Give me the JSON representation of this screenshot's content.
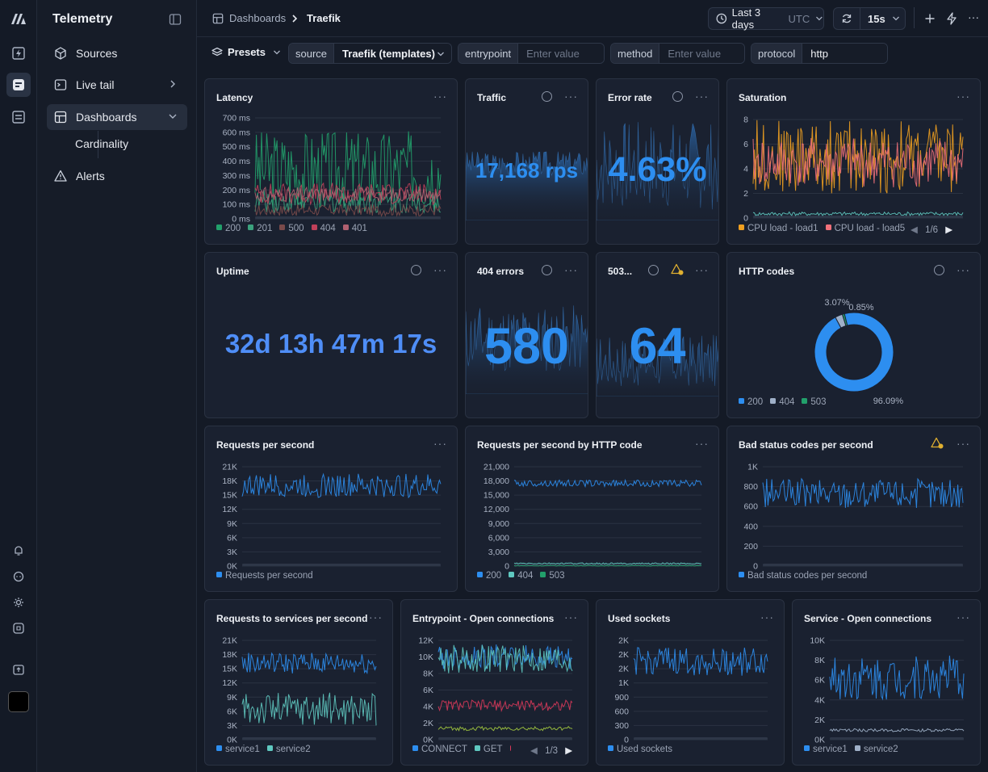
{
  "app": {
    "title": "Telemetry"
  },
  "sidebar": {
    "items": [
      {
        "label": "Sources",
        "icon": "cube-icon"
      },
      {
        "label": "Live tail",
        "icon": "terminal-icon"
      },
      {
        "label": "Dashboards",
        "icon": "dashboard-icon"
      },
      {
        "label": "Alerts",
        "icon": "warning-icon"
      }
    ],
    "sub_items": [
      {
        "label": "Cardinality"
      }
    ]
  },
  "header": {
    "breadcrumb": [
      "Dashboards",
      "Traefik"
    ],
    "time_range": "Last 3 days",
    "timezone": "UTC",
    "refresh": "15s"
  },
  "filters": {
    "presets_label": "Presets",
    "source": {
      "label": "source",
      "value": "Traefik (templates)"
    },
    "entrypoint": {
      "label": "entrypoint",
      "placeholder": "Enter value"
    },
    "method": {
      "label": "method",
      "placeholder": "Enter value"
    },
    "protocol": {
      "label": "protocol",
      "value": "http"
    }
  },
  "panels": {
    "latency": {
      "title": "Latency"
    },
    "traffic": {
      "title": "Traffic",
      "value": "17,168 rps"
    },
    "error_rate": {
      "title": "Error rate",
      "value": "4.63%"
    },
    "saturation": {
      "title": "Saturation",
      "pager": "1/6"
    },
    "uptime": {
      "title": "Uptime",
      "value": "32d 13h 47m 17s"
    },
    "errors_404": {
      "title": "404 errors",
      "value": "580"
    },
    "errors_503": {
      "title": "503...",
      "value": "64"
    },
    "http_codes": {
      "title": "HTTP codes"
    },
    "rps": {
      "title": "Requests per second"
    },
    "rps_by_code": {
      "title": "Requests per second by HTTP code"
    },
    "bad_status": {
      "title": "Bad status codes per second"
    },
    "rps_services": {
      "title": "Requests to services per second"
    },
    "entrypoint_conn": {
      "title": "Entrypoint - Open connections",
      "pager": "1/3"
    },
    "used_sockets": {
      "title": "Used sockets"
    },
    "service_conn": {
      "title": "Service - Open connections"
    }
  },
  "colors": {
    "blue": "#2d8ef0",
    "green": "#22a06b",
    "red": "#d9385a",
    "orange": "#f0a020",
    "salmon": "#f0707a",
    "teal": "#5fc8c0"
  },
  "chart_data": [
    {
      "id": "latency",
      "type": "line",
      "yticks": [
        "700 ms",
        "600 ms",
        "500 ms",
        "400 ms",
        "300 ms",
        "200 ms",
        "100 ms",
        "0 ms"
      ],
      "ylim": [
        0,
        700
      ],
      "series": [
        {
          "name": "200",
          "color": "#22a06b",
          "band": [
            60,
            620
          ]
        },
        {
          "name": "201",
          "color": "#3ba27d",
          "band": [
            40,
            200
          ]
        },
        {
          "name": "500",
          "color": "#7a4a4a",
          "band": [
            20,
            100
          ]
        },
        {
          "name": "404",
          "color": "#c0405a",
          "band": [
            100,
            250
          ]
        },
        {
          "name": "401",
          "color": "#b06070",
          "band": [
            120,
            220
          ]
        }
      ]
    },
    {
      "id": "saturation",
      "type": "line",
      "yticks": [
        "8",
        "6",
        "4",
        "2",
        "0"
      ],
      "ylim": [
        0,
        8
      ],
      "series": [
        {
          "name": "CPU load - load1",
          "color": "#f0a020",
          "band": [
            2,
            8
          ]
        },
        {
          "name": "CPU load - load5",
          "color": "#f0707a",
          "band": [
            2.5,
            6.5
          ]
        },
        {
          "name": "",
          "color": "#5fc8c0",
          "band": [
            0.2,
            0.5
          ]
        }
      ]
    },
    {
      "id": "http_codes",
      "type": "pie",
      "slices": [
        {
          "name": "200",
          "value": 96.09,
          "label": "96.09%",
          "color": "#2d8ef0"
        },
        {
          "name": "404",
          "value": 3.07,
          "label": "3.07%",
          "color": "#9fb0c8"
        },
        {
          "name": "503",
          "value": 0.85,
          "label": "0.85%",
          "color": "#22a06b"
        }
      ]
    },
    {
      "id": "rps",
      "type": "line",
      "yticks": [
        "21K",
        "18K",
        "15K",
        "12K",
        "9K",
        "6K",
        "3K",
        "0K"
      ],
      "ylim": [
        0,
        21000
      ],
      "series": [
        {
          "name": "Requests per second",
          "color": "#2d8ef0",
          "band": [
            14500,
            19500
          ]
        }
      ]
    },
    {
      "id": "rps_by_code",
      "type": "line",
      "yticks": [
        "21,000",
        "18,000",
        "15,000",
        "12,000",
        "9,000",
        "6,000",
        "3,000",
        "0"
      ],
      "ylim": [
        0,
        21000
      ],
      "series": [
        {
          "name": "200",
          "color": "#2d8ef0",
          "band": [
            16800,
            18200
          ]
        },
        {
          "name": "404",
          "color": "#5fc8c0",
          "band": [
            400,
            700
          ]
        },
        {
          "name": "503",
          "color": "#22a06b",
          "band": [
            0,
            150
          ]
        }
      ]
    },
    {
      "id": "bad_status",
      "type": "line",
      "yticks": [
        "1K",
        "800",
        "600",
        "400",
        "200",
        "0"
      ],
      "ylim": [
        0,
        1000
      ],
      "series": [
        {
          "name": "Bad status codes per second",
          "color": "#2d8ef0",
          "band": [
            580,
            880
          ]
        }
      ]
    },
    {
      "id": "rps_services",
      "type": "line",
      "yticks": [
        "21K",
        "18K",
        "15K",
        "12K",
        "9K",
        "6K",
        "3K",
        "0K"
      ],
      "ylim": [
        0,
        21000
      ],
      "series": [
        {
          "name": "service1",
          "color": "#2d8ef0",
          "band": [
            14000,
            18500
          ]
        },
        {
          "name": "service2",
          "color": "#5fc8c0",
          "band": [
            3000,
            10000
          ]
        }
      ]
    },
    {
      "id": "entrypoint_conn",
      "type": "line",
      "yticks": [
        "12K",
        "10K",
        "8K",
        "6K",
        "4K",
        "2K",
        "0K"
      ],
      "ylim": [
        0,
        12000
      ],
      "series": [
        {
          "name": "CONNECT",
          "color": "#2d8ef0",
          "band": [
            8500,
            11500
          ]
        },
        {
          "name": "GET",
          "color": "#5fc8c0",
          "band": [
            8000,
            11500
          ]
        },
        {
          "name": "",
          "color": "#d9385a",
          "band": [
            3500,
            4800
          ]
        },
        {
          "name": "",
          "color": "#a2c83f",
          "band": [
            1100,
            1600
          ]
        }
      ]
    },
    {
      "id": "used_sockets",
      "type": "line",
      "yticks": [
        "2K",
        "2K",
        "2K",
        "1K",
        "900",
        "600",
        "300",
        "0"
      ],
      "ylim": [
        0,
        2100
      ],
      "series": [
        {
          "name": "Used sockets",
          "color": "#2d8ef0",
          "band": [
            1350,
            1950
          ]
        }
      ]
    },
    {
      "id": "service_conn",
      "type": "line",
      "yticks": [
        "10K",
        "8K",
        "6K",
        "4K",
        "2K",
        "0K"
      ],
      "ylim": [
        0,
        10000
      ],
      "series": [
        {
          "name": "service1",
          "color": "#2d8ef0",
          "band": [
            4000,
            8500
          ]
        },
        {
          "name": "service2",
          "color": "#9fb0c8",
          "band": [
            800,
            1100
          ]
        }
      ]
    }
  ]
}
